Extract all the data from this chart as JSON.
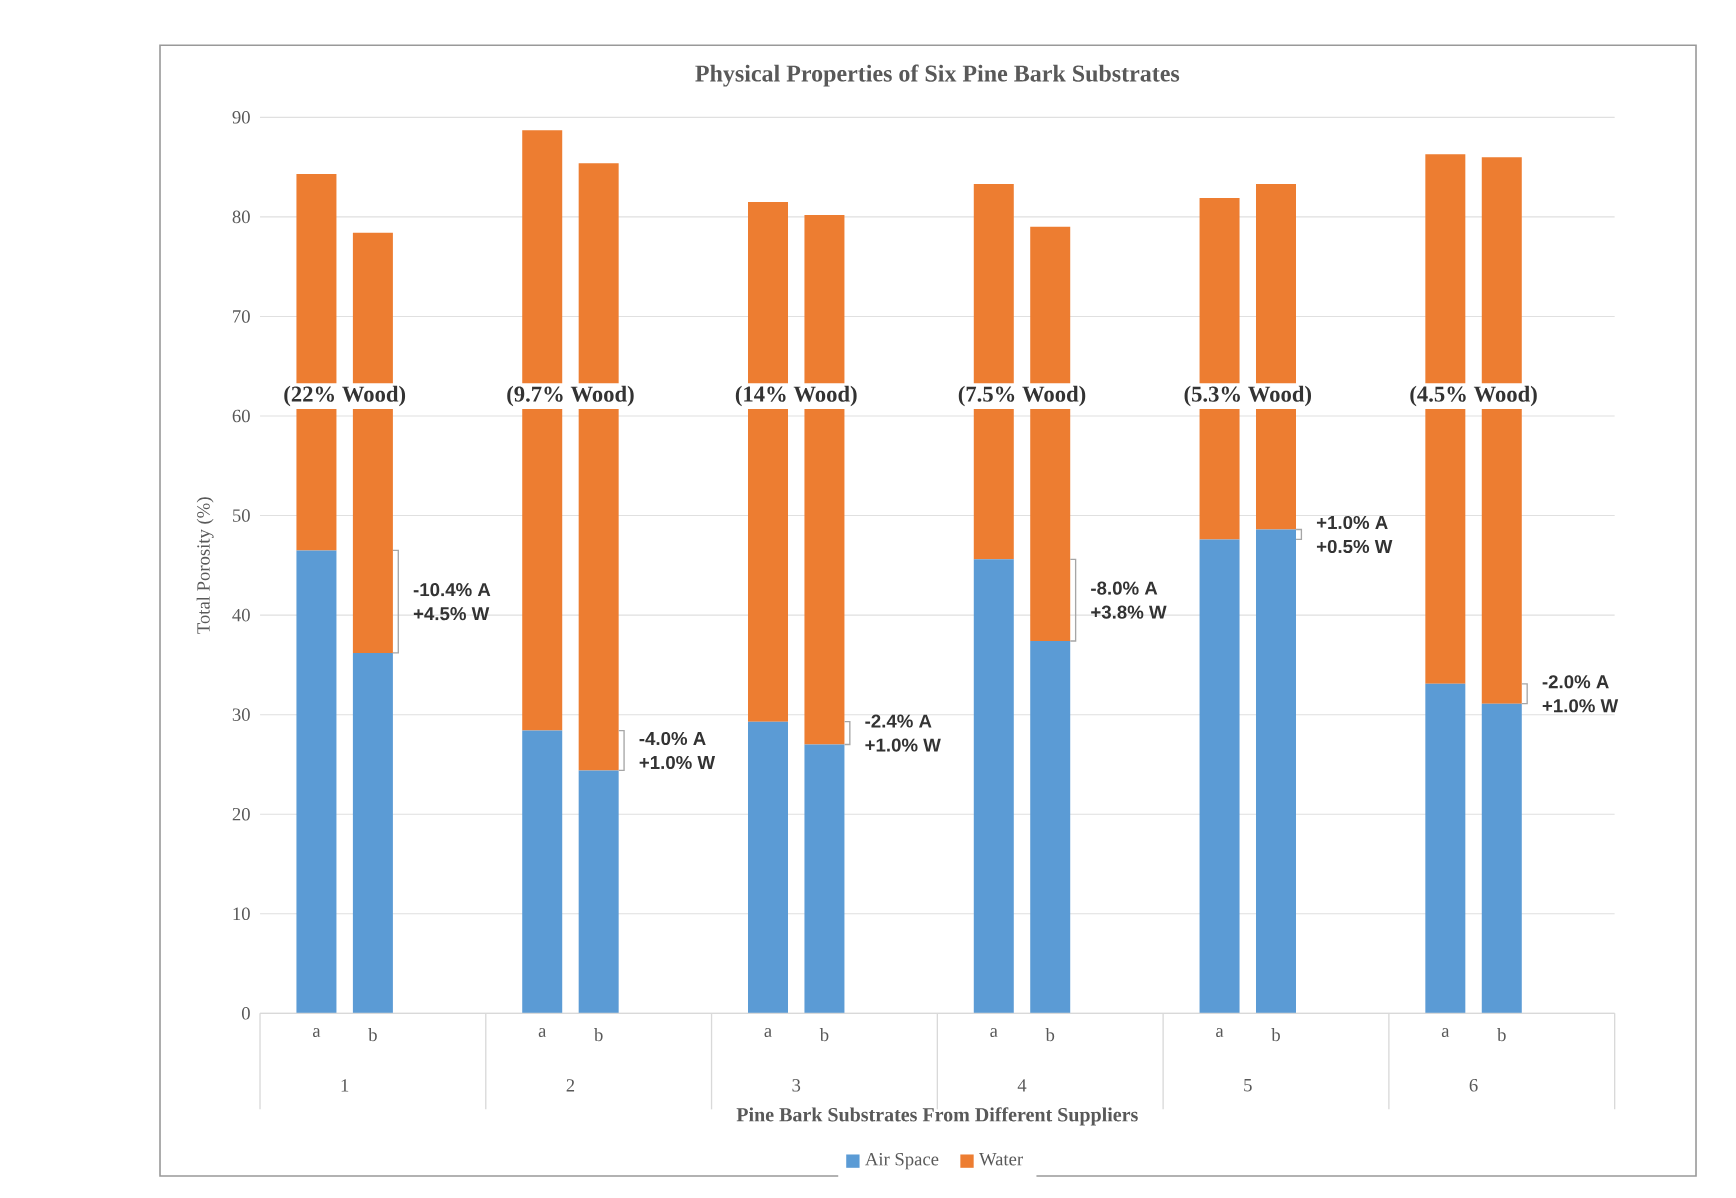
{
  "chart_data": {
    "type": "bar",
    "stacked": true,
    "title": "Physical Properties of Six Pine Bark Substrates",
    "xlabel": "Pine Bark Substrates From Different Suppliers",
    "ylabel": "Total Porosity (%)",
    "categories": [
      "a",
      "b",
      "a",
      "b",
      "a",
      "b",
      "a",
      "b",
      "a",
      "b",
      "a",
      "b"
    ],
    "series": [
      {
        "name": "Air Space",
        "color": "#5b9bd5",
        "values": [
          46.5,
          36.2,
          28.4,
          24.4,
          29.3,
          27.0,
          45.6,
          37.4,
          47.6,
          48.6,
          33.1,
          31.1
        ]
      },
      {
        "name": "Water",
        "color": "#ed7d31",
        "values": [
          37.8,
          42.2,
          60.3,
          61.0,
          52.2,
          53.2,
          37.7,
          41.6,
          34.3,
          34.7,
          53.2,
          54.9
        ]
      }
    ],
    "ylim": [
      0,
      90
    ],
    "yticks": [
      0,
      10,
      20,
      30,
      40,
      50,
      60,
      70,
      80,
      90
    ],
    "grid": "y",
    "legend": "bottom",
    "annotations": [
      "(22% Wood)",
      "(9.7% Wood)",
      "(14% Wood)",
      "(7.5% Wood)",
      "(5.3% Wood)",
      "(4.5% Wood)",
      "1",
      "2",
      "3",
      "4",
      "5",
      "6",
      "-10.4% A",
      "+4.5% W",
      "-4.0% A",
      "+1.0% W",
      "-2.4% A",
      "+1.0% W",
      "-8.0% A",
      "+3.8% W",
      "+1.0% A",
      "+0.5% W",
      "-2.0% A",
      "+1.0% W"
    ]
  }
}
